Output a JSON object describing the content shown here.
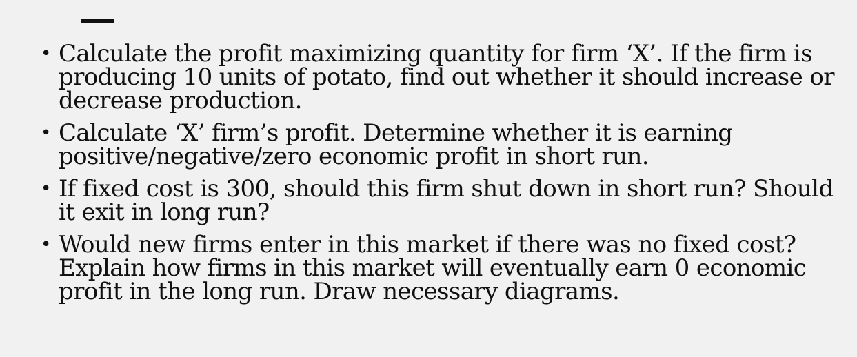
{
  "slide": {
    "bullets": [
      {
        "text": "Calculate the profit maximizing quantity for firm ‘X’. If the firm is producing 10 units of potato, find out whether it should increase or decrease production."
      },
      {
        "text": "Calculate ‘X’ firm’s profit. Determine whether it is earning positive/negative/zero economic profit in short run."
      },
      {
        "text": "If fixed cost is 300, should this firm shut down in short run? Should it exit in long run?"
      },
      {
        "text": "Would new firms enter in this market if there was no fixed cost? Explain how firms in this market will eventually earn 0 economic profit in the long run. Draw necessary diagrams."
      }
    ],
    "bullet_marker": "•"
  },
  "colors": {
    "background": "#f1f1f1",
    "text": "#111111",
    "accent_bar": "#111111"
  }
}
